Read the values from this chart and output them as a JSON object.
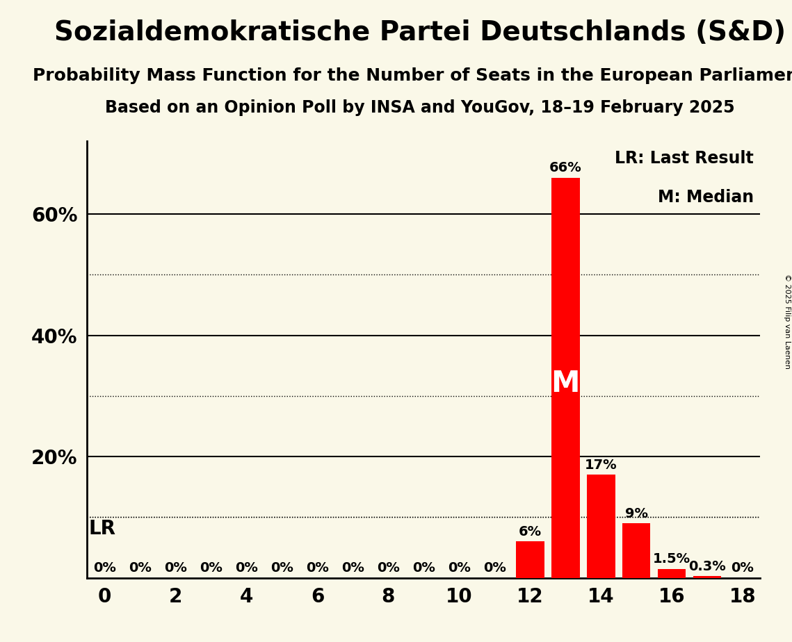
{
  "title": "Sozialdemokratische Partei Deutschlands (S&D)",
  "subtitle1": "Probability Mass Function for the Number of Seats in the European Parliament",
  "subtitle2": "Based on an Opinion Poll by INSA and YouGov, 18–19 February 2025",
  "copyright": "© 2025 Filip van Laenen",
  "seats": [
    0,
    1,
    2,
    3,
    4,
    5,
    6,
    7,
    8,
    9,
    10,
    11,
    12,
    13,
    14,
    15,
    16,
    17,
    18
  ],
  "probabilities": [
    0,
    0,
    0,
    0,
    0,
    0,
    0,
    0,
    0,
    0,
    0,
    0,
    6,
    66,
    17,
    9,
    1.5,
    0.3,
    0
  ],
  "bar_color": "#ff0000",
  "background_color": "#faf8e8",
  "lr_seat": 11,
  "lr_label": "LR",
  "lr_line_y": 10,
  "median_seat": 13,
  "median_label": "M",
  "median_y": 32,
  "legend_lr": "LR: Last Result",
  "legend_m": "M: Median",
  "ylim": [
    0,
    72
  ],
  "xlim": [
    -0.5,
    18.5
  ],
  "xticks": [
    0,
    2,
    4,
    6,
    8,
    10,
    12,
    14,
    16,
    18
  ],
  "solid_lines": [
    20,
    40,
    60
  ],
  "dotted_lines": [
    10,
    30,
    50
  ],
  "ytick_positions": [
    20,
    40,
    60
  ],
  "ytick_labels": [
    "20%",
    "40%",
    "60%"
  ],
  "title_fontsize": 28,
  "subtitle1_fontsize": 18,
  "subtitle2_fontsize": 17,
  "axis_fontsize": 20,
  "bar_label_fontsize": 14,
  "median_fontsize": 30,
  "legend_fontsize": 17,
  "lr_fontsize": 20
}
